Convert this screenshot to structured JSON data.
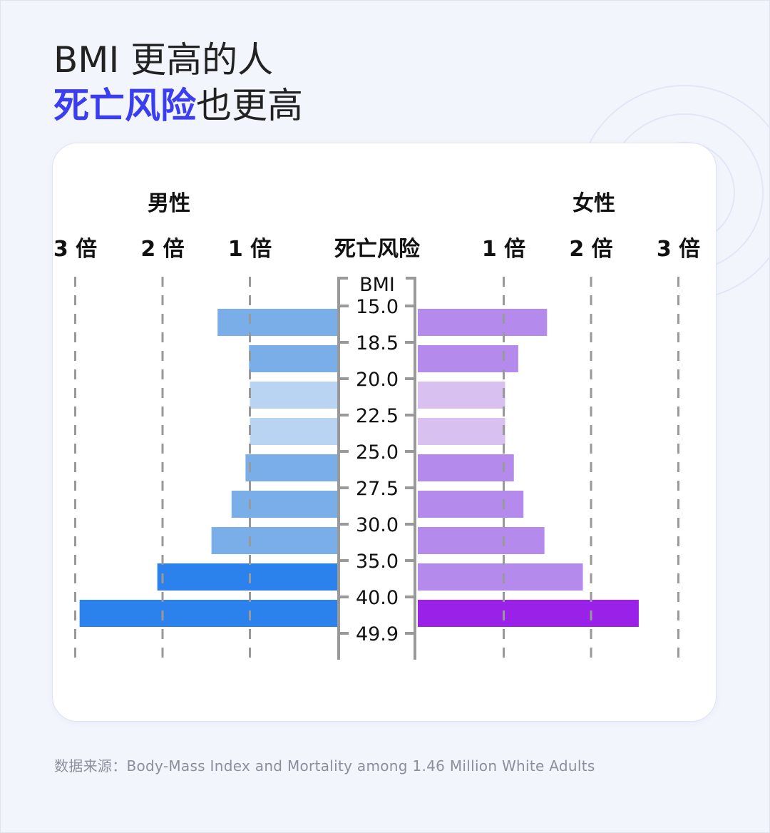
{
  "title": {
    "line1": "BMI 更高的人",
    "line2_accent": "死亡风险",
    "line2_rest": "也更高"
  },
  "colors": {
    "accent": "#3b3df0",
    "male": "#7aaee8",
    "male_reference": "#b9d3f2",
    "male_high": "#2b82ec",
    "female": "#b48aec",
    "female_reference": "#d8c0f0",
    "female_high": "#9a22e8",
    "axis": "#999999"
  },
  "chart_data": {
    "type": "bar",
    "orientation": "horizontal-butterfly",
    "center_header": "死亡风险",
    "axis_title": "BMI",
    "bmi_ticks": [
      "15.0",
      "18.5",
      "20.0",
      "22.5",
      "25.0",
      "27.5",
      "30.0",
      "35.0",
      "40.0",
      "49.9"
    ],
    "categories": [
      "15.0–18.5",
      "18.5–20.0",
      "20.0–22.5",
      "22.5–25.0",
      "25.0–27.5",
      "27.5–30.0",
      "30.0–35.0",
      "35.0–40.0",
      "40.0–49.9"
    ],
    "x_ticks": [
      {
        "value": 1,
        "label": "1 倍"
      },
      {
        "value": 2,
        "label": "2 倍"
      },
      {
        "value": 3,
        "label": "3 倍"
      }
    ],
    "xlim": [
      0,
      3
    ],
    "grid": true,
    "series": [
      {
        "name": "男性",
        "side": "left",
        "values": [
          1.37,
          1.01,
          1.0,
          1.0,
          1.05,
          1.21,
          1.44,
          2.06,
          2.95
        ],
        "shade": [
          "normal",
          "normal",
          "reference",
          "reference",
          "normal",
          "normal",
          "normal",
          "high",
          "high"
        ]
      },
      {
        "name": "女性",
        "side": "right",
        "values": [
          1.48,
          1.15,
          1.0,
          1.0,
          1.1,
          1.21,
          1.45,
          1.89,
          2.53
        ],
        "shade": [
          "normal",
          "normal",
          "reference",
          "reference",
          "normal",
          "normal",
          "normal",
          "normal",
          "high"
        ]
      }
    ]
  },
  "source": "数据来源：Body-Mass Index and Mortality among 1.46 Million White Adults"
}
